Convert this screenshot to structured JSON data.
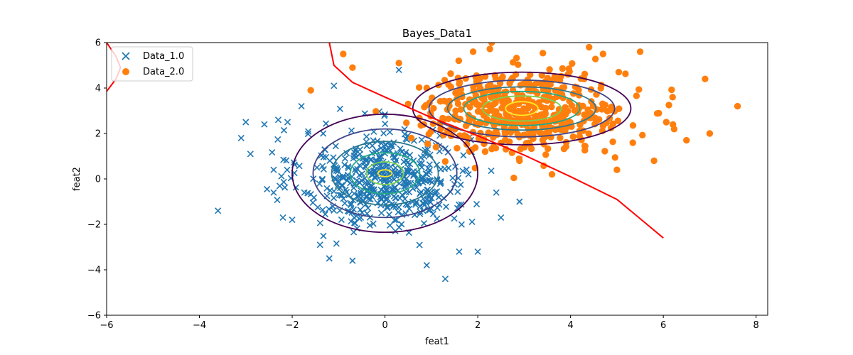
{
  "chart_data": {
    "type": "scatter",
    "title": "Bayes_Data1",
    "xlabel": "feat1",
    "ylabel": "feat2",
    "xlim": [
      -6,
      8.25
    ],
    "ylim": [
      -6,
      6
    ],
    "xticks": [
      -6,
      -4,
      -2,
      0,
      2,
      4,
      6,
      8
    ],
    "yticks": [
      -6,
      -4,
      -2,
      0,
      2,
      4,
      6
    ],
    "grid": false,
    "legend_position": "top-left",
    "series": [
      {
        "name": "Data_1.0",
        "marker": "x",
        "color": "#1f77b4",
        "distribution": {
          "mean": [
            0.0,
            0.0
          ],
          "std": [
            0.9,
            1.1
          ],
          "count": 500
        },
        "points": [
          [
            -3.6,
            -1.4
          ],
          [
            -3.1,
            1.8
          ],
          [
            -3.0,
            2.5
          ],
          [
            -2.9,
            1.1
          ],
          [
            -2.6,
            2.4
          ],
          [
            -2.4,
            -0.6
          ],
          [
            -2.4,
            0.4
          ],
          [
            -2.3,
            2.6
          ],
          [
            -2.2,
            -1.7
          ],
          [
            -2.1,
            2.5
          ],
          [
            -2.0,
            -1.8
          ],
          [
            -1.8,
            3.2
          ],
          [
            -1.4,
            -2.9
          ],
          [
            -1.2,
            -3.5
          ],
          [
            -1.1,
            4.1
          ],
          [
            -0.7,
            -3.6
          ],
          [
            0.3,
            4.8
          ],
          [
            0.9,
            -3.8
          ],
          [
            1.3,
            -4.4
          ],
          [
            1.6,
            -3.2
          ],
          [
            2.0,
            -3.2
          ],
          [
            2.5,
            -1.7
          ],
          [
            2.9,
            -1.0
          ],
          [
            1.8,
            0.2
          ],
          [
            2.4,
            -0.6
          ]
        ]
      },
      {
        "name": "Data_2.0",
        "marker": "o",
        "color": "#ff7f0e",
        "distribution": {
          "mean": [
            3.0,
            3.0
          ],
          "std": [
            1.1,
            0.9
          ],
          "count": 500
        },
        "points": [
          [
            -1.6,
            3.9
          ],
          [
            -0.9,
            5.5
          ],
          [
            -0.7,
            4.9
          ],
          [
            0.9,
            4.0
          ],
          [
            0.3,
            5.1
          ],
          [
            1.9,
            5.6
          ],
          [
            2.3,
            6.0
          ],
          [
            2.8,
            6.2
          ],
          [
            4.4,
            5.8
          ],
          [
            4.7,
            5.5
          ],
          [
            5.5,
            5.6
          ],
          [
            6.2,
            3.6
          ],
          [
            6.5,
            1.7
          ],
          [
            6.9,
            4.4
          ],
          [
            7.0,
            2.0
          ],
          [
            7.6,
            3.2
          ],
          [
            5.8,
            0.8
          ],
          [
            5.0,
            0.4
          ],
          [
            3.6,
            0.2
          ],
          [
            2.9,
            0.8
          ],
          [
            1.1,
            1.4
          ],
          [
            0.5,
            3.3
          ]
        ]
      }
    ],
    "contours": [
      {
        "class": "Data_1.0",
        "center": [
          0.0,
          0.25
        ],
        "radii": [
          [
            0.15,
            0.15
          ],
          [
            0.4,
            0.5
          ],
          [
            0.75,
            0.9
          ],
          [
            1.15,
            1.4
          ],
          [
            1.55,
            1.95
          ],
          [
            2.0,
            2.6
          ]
        ],
        "colors": [
          "#fde725",
          "#7ad151",
          "#22a884",
          "#2a788e",
          "#414487",
          "#440154"
        ]
      },
      {
        "class": "Data_2.0",
        "center": [
          2.95,
          3.1
        ],
        "radii": [
          [
            0.35,
            0.3
          ],
          [
            0.85,
            0.55
          ],
          [
            1.25,
            0.75
          ],
          [
            1.6,
            0.95
          ],
          [
            2.0,
            1.25
          ],
          [
            2.35,
            1.6
          ]
        ],
        "colors": [
          "#fde725",
          "#7ad151",
          "#22a884",
          "#2a788e",
          "#414487",
          "#440154"
        ]
      }
    ],
    "decision_boundary": {
      "color": "#ff0000",
      "points": [
        [
          -1.2,
          6.0
        ],
        [
          -1.1,
          5.0
        ],
        [
          -0.7,
          4.25
        ],
        [
          0.0,
          3.6
        ],
        [
          1.0,
          2.7
        ],
        [
          2.0,
          1.9
        ],
        [
          3.0,
          1.05
        ],
        [
          4.0,
          0.1
        ],
        [
          5.0,
          -0.9
        ],
        [
          6.0,
          -2.6
        ]
      ],
      "left_arc": [
        [
          -6.0,
          6.0
        ],
        [
          -5.8,
          5.4
        ],
        [
          -5.7,
          4.9
        ],
        [
          -5.8,
          4.4
        ],
        [
          -6.0,
          3.85
        ]
      ]
    }
  }
}
